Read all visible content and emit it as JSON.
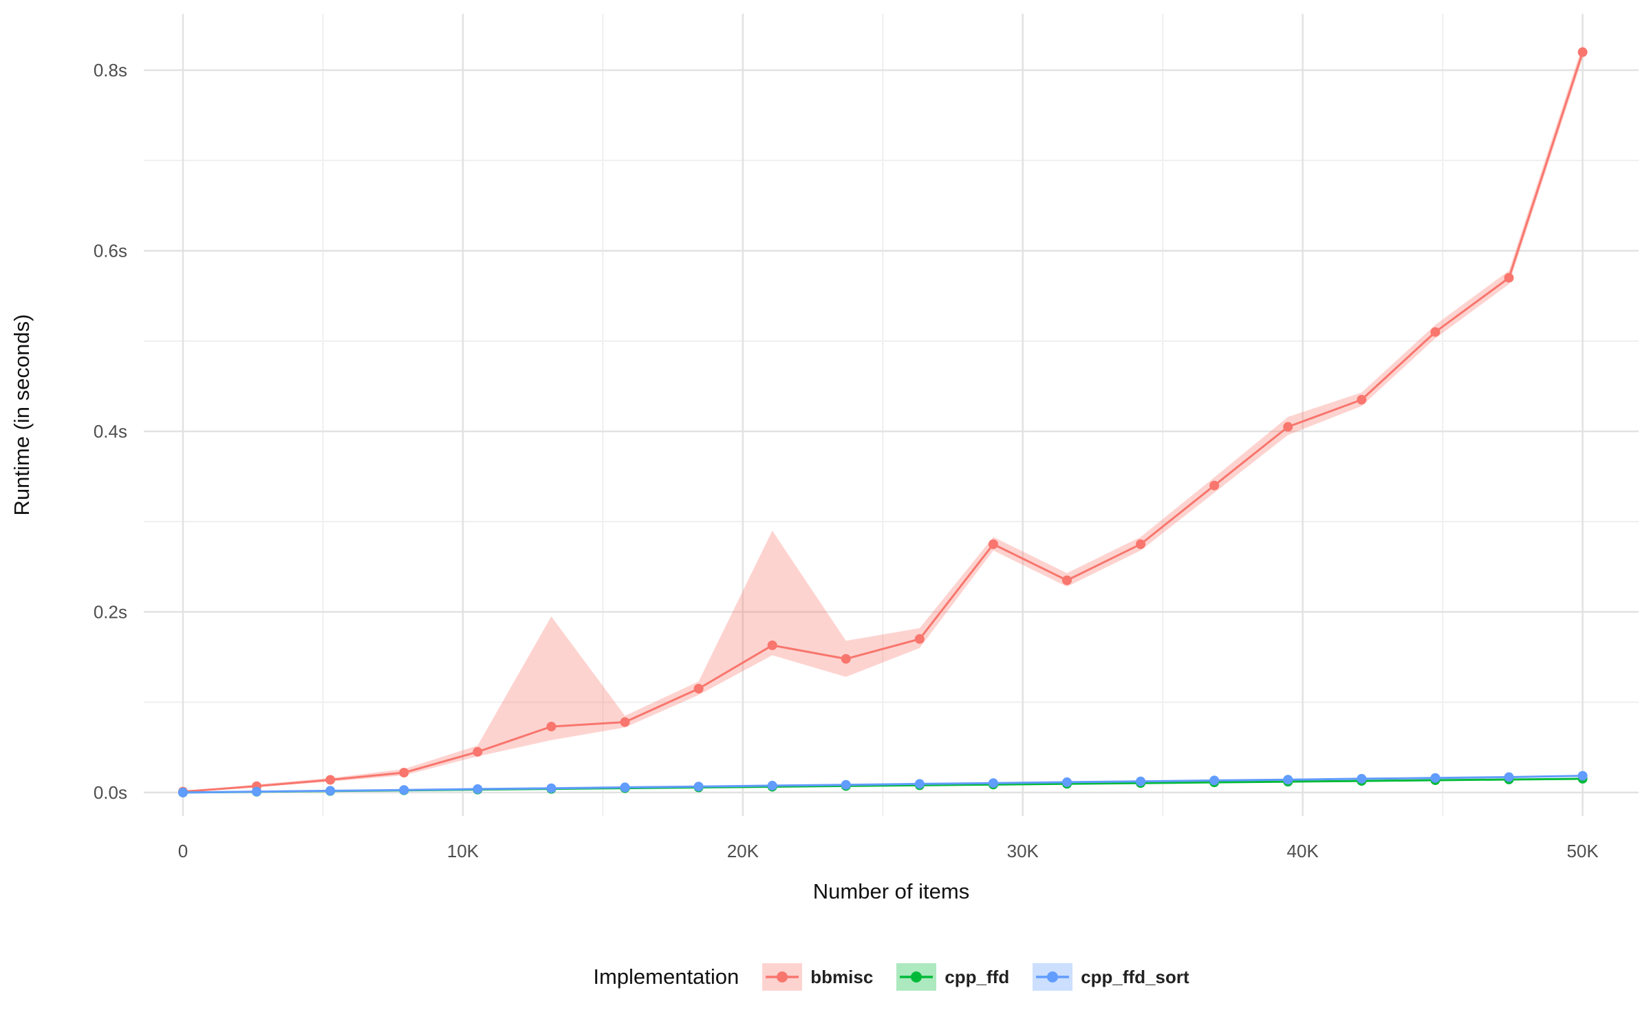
{
  "chart_data": {
    "type": "line",
    "title": "",
    "xlabel": "Number of items",
    "ylabel": "Runtime (in seconds)",
    "legend_title": "Implementation",
    "legend_position": "bottom",
    "grid": true,
    "background": "#ffffff",
    "grid_major_color": "#e2e2e2",
    "grid_minor_color": "#efefef",
    "xlim": [
      -1400,
      52000
    ],
    "ylim": [
      -0.026,
      0.8625
    ],
    "x_tick_values": [
      0,
      10000,
      20000,
      30000,
      40000,
      50000
    ],
    "x_tick_labels": [
      "0",
      "10K",
      "20K",
      "30K",
      "40K",
      "50K"
    ],
    "x_minor_ticks": [
      5000,
      15000,
      25000,
      35000,
      45000
    ],
    "y_tick_values": [
      0,
      0.2,
      0.4,
      0.6,
      0.8
    ],
    "y_tick_labels": [
      "0.0s",
      "0.2s",
      "0.4s",
      "0.6s",
      "0.8s"
    ],
    "y_minor_ticks": [
      0.1,
      0.3,
      0.5,
      0.7
    ],
    "x": [
      0,
      2632,
      5263,
      7895,
      10526,
      13158,
      15789,
      18421,
      21053,
      23684,
      26316,
      28947,
      31579,
      34211,
      36842,
      39474,
      42105,
      44737,
      47368,
      50000
    ],
    "series": [
      {
        "name": "bbmisc",
        "color": "#F8766D",
        "ribbon_color": "rgba(248,118,109,0.32)",
        "values": [
          0.001,
          0.007,
          0.014,
          0.022,
          0.045,
          0.073,
          0.078,
          0.115,
          0.163,
          0.148,
          0.17,
          0.275,
          0.235,
          0.275,
          0.34,
          0.405,
          0.435,
          0.51,
          0.57,
          0.82
        ],
        "lower": [
          0.001,
          0.006,
          0.012,
          0.019,
          0.04,
          0.058,
          0.072,
          0.108,
          0.152,
          0.128,
          0.16,
          0.268,
          0.228,
          0.268,
          0.332,
          0.396,
          0.428,
          0.503,
          0.563,
          0.813
        ],
        "upper": [
          0.001,
          0.009,
          0.016,
          0.026,
          0.052,
          0.195,
          0.085,
          0.123,
          0.29,
          0.168,
          0.182,
          0.283,
          0.243,
          0.283,
          0.349,
          0.416,
          0.443,
          0.518,
          0.578,
          0.828
        ]
      },
      {
        "name": "cpp_ffd",
        "color": "#00BA38",
        "ribbon_color": "rgba(0,186,56,0.32)",
        "values": [
          0.0,
          0.0008,
          0.0016,
          0.0024,
          0.0032,
          0.004,
          0.0048,
          0.0056,
          0.0064,
          0.0072,
          0.008,
          0.0088,
          0.0096,
          0.0104,
          0.0112,
          0.012,
          0.0128,
          0.0136,
          0.0144,
          0.0152
        ]
      },
      {
        "name": "cpp_ffd_sort",
        "color": "#619CFF",
        "ribbon_color": "rgba(97,156,255,0.32)",
        "values": [
          0.0,
          0.001,
          0.0019,
          0.0028,
          0.0038,
          0.0047,
          0.0057,
          0.0066,
          0.0076,
          0.0085,
          0.0095,
          0.0104,
          0.0114,
          0.0123,
          0.0133,
          0.0142,
          0.0152,
          0.0161,
          0.0171,
          0.0185
        ]
      }
    ]
  }
}
